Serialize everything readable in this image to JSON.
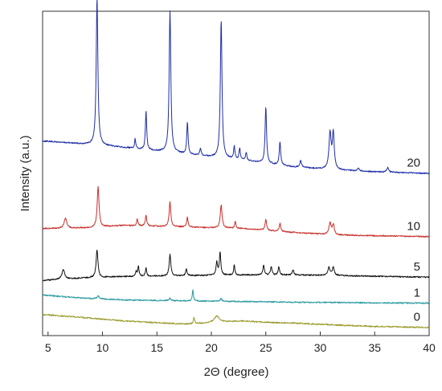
{
  "chart_data": {
    "type": "line",
    "xlabel": "2Θ (degree)",
    "ylabel": "Intensity (a.u.)",
    "xlim": [
      4.5,
      40
    ],
    "x_ticks": [
      5,
      10,
      15,
      20,
      25,
      30,
      35,
      40
    ],
    "y_ticks_shown": false,
    "grid": false,
    "legend": "labels at right end of each trace",
    "series": [
      {
        "name": "20",
        "color": "#1f2ea8",
        "baseline": [
          [
            4.5,
            0.4
          ],
          [
            8.5,
            0.41
          ],
          [
            12.0,
            0.42
          ],
          [
            17.5,
            0.44
          ],
          [
            23.0,
            0.46
          ],
          [
            27.5,
            0.48
          ],
          [
            31.8,
            0.49
          ],
          [
            35.0,
            0.495
          ],
          [
            40.0,
            0.5
          ]
        ],
        "peaks": [
          [
            9.5,
            0.455,
            0.09
          ],
          [
            13.0,
            0.03,
            0.06
          ],
          [
            14.0,
            0.12,
            0.07
          ],
          [
            16.2,
            0.435,
            0.09
          ],
          [
            17.8,
            0.1,
            0.07
          ],
          [
            19.0,
            0.02,
            0.08
          ],
          [
            20.9,
            0.425,
            0.09
          ],
          [
            22.1,
            0.04,
            0.07
          ],
          [
            22.6,
            0.035,
            0.07
          ],
          [
            23.2,
            0.025,
            0.07
          ],
          [
            25.0,
            0.175,
            0.08
          ],
          [
            26.3,
            0.07,
            0.08
          ],
          [
            28.2,
            0.02,
            0.1
          ],
          [
            30.9,
            0.11,
            0.12
          ],
          [
            31.2,
            0.11,
            0.1
          ],
          [
            33.5,
            0.01,
            0.1
          ],
          [
            36.2,
            0.015,
            0.1
          ]
        ]
      },
      {
        "name": "10",
        "color": "#c8302c",
        "baseline": [
          [
            4.5,
            0.67
          ],
          [
            8.5,
            0.668
          ],
          [
            12.0,
            0.66
          ],
          [
            17.5,
            0.665
          ],
          [
            23.0,
            0.67
          ],
          [
            27.5,
            0.682
          ],
          [
            31.8,
            0.69
          ],
          [
            35.0,
            0.692
          ],
          [
            40.0,
            0.695
          ]
        ],
        "peaks": [
          [
            6.6,
            0.03,
            0.15
          ],
          [
            9.6,
            0.125,
            0.1
          ],
          [
            13.2,
            0.02,
            0.07
          ],
          [
            14.0,
            0.035,
            0.07
          ],
          [
            16.2,
            0.075,
            0.09
          ],
          [
            17.8,
            0.03,
            0.07
          ],
          [
            20.9,
            0.07,
            0.1
          ],
          [
            22.2,
            0.02,
            0.07
          ],
          [
            25.0,
            0.035,
            0.08
          ],
          [
            26.3,
            0.025,
            0.08
          ],
          [
            30.9,
            0.035,
            0.12
          ],
          [
            31.2,
            0.03,
            0.1
          ]
        ]
      },
      {
        "name": "5",
        "color": "#111111",
        "baseline": [
          [
            4.5,
            0.83
          ],
          [
            8.5,
            0.822
          ],
          [
            12.0,
            0.818
          ],
          [
            17.5,
            0.815
          ],
          [
            23.0,
            0.813
          ],
          [
            27.5,
            0.813
          ],
          [
            31.8,
            0.815
          ],
          [
            35.0,
            0.817
          ],
          [
            40.0,
            0.82
          ]
        ],
        "peaks": [
          [
            6.4,
            0.03,
            0.15
          ],
          [
            9.5,
            0.085,
            0.1
          ],
          [
            13.1,
            0.015,
            0.07
          ],
          [
            13.3,
            0.03,
            0.07
          ],
          [
            14.0,
            0.025,
            0.07
          ],
          [
            16.2,
            0.065,
            0.09
          ],
          [
            17.7,
            0.02,
            0.07
          ],
          [
            20.5,
            0.04,
            0.08
          ],
          [
            20.8,
            0.07,
            0.08
          ],
          [
            22.1,
            0.03,
            0.07
          ],
          [
            24.8,
            0.03,
            0.08
          ],
          [
            25.5,
            0.025,
            0.08
          ],
          [
            26.2,
            0.025,
            0.08
          ],
          [
            27.5,
            0.015,
            0.09
          ],
          [
            30.8,
            0.025,
            0.12
          ],
          [
            31.2,
            0.025,
            0.1
          ]
        ]
      },
      {
        "name": "1",
        "color": "#2a9aa0",
        "baseline": [
          [
            4.5,
            0.875
          ],
          [
            8.5,
            0.885
          ],
          [
            12.0,
            0.89
          ],
          [
            17.5,
            0.893
          ],
          [
            23.0,
            0.895
          ],
          [
            27.5,
            0.897
          ],
          [
            31.8,
            0.898
          ],
          [
            35.0,
            0.899
          ],
          [
            40.0,
            0.9
          ]
        ],
        "peaks": [
          [
            9.6,
            0.01,
            0.1
          ],
          [
            16.2,
            0.008,
            0.09
          ],
          [
            18.3,
            0.035,
            0.06
          ],
          [
            20.9,
            0.008,
            0.1
          ]
        ]
      },
      {
        "name": "0",
        "color": "#9a9a2a",
        "baseline": [
          [
            4.5,
            0.935
          ],
          [
            8.5,
            0.945
          ],
          [
            12.0,
            0.955
          ],
          [
            17.5,
            0.965
          ],
          [
            23.0,
            0.96
          ],
          [
            27.5,
            0.962
          ],
          [
            31.8,
            0.968
          ],
          [
            35.0,
            0.972
          ],
          [
            40.0,
            0.975
          ]
        ],
        "peaks": [
          [
            18.4,
            0.02,
            0.06
          ],
          [
            20.5,
            0.02,
            0.3
          ],
          [
            22.5,
            0.005,
            2.0
          ]
        ]
      }
    ]
  }
}
